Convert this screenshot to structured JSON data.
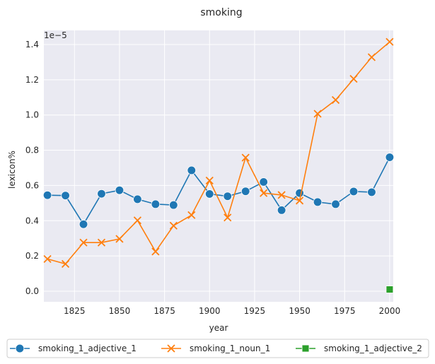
{
  "chart_data": {
    "type": "line",
    "title": "smoking",
    "xlabel": "year",
    "ylabel": "lexicon%",
    "y_offset_label": "1e−5",
    "xlim": [
      1808,
      2002
    ],
    "ylim": [
      -0.06,
      1.48
    ],
    "x_ticks": [
      1825,
      1850,
      1875,
      1900,
      1925,
      1950,
      1975,
      2000
    ],
    "y_ticks": [
      0.0,
      0.2,
      0.4,
      0.6,
      0.8,
      1.0,
      1.2,
      1.4
    ],
    "y_tick_labels": [
      "0.0",
      "0.2",
      "0.4",
      "0.6",
      "0.8",
      "1.0",
      "1.2",
      "1.4"
    ],
    "grid": true,
    "legend_position": "bottom",
    "series": [
      {
        "name": "smoking_1_adjective_1",
        "color": "#1f77b4",
        "marker": "circle",
        "x": [
          1810,
          1820,
          1830,
          1840,
          1850,
          1860,
          1870,
          1880,
          1890,
          1900,
          1910,
          1920,
          1930,
          1940,
          1950,
          1960,
          1970,
          1980,
          1990,
          2000
        ],
        "y": [
          0.545,
          0.543,
          0.38,
          0.553,
          0.573,
          0.522,
          0.494,
          0.489,
          0.686,
          0.552,
          0.539,
          0.567,
          0.62,
          0.46,
          0.557,
          0.506,
          0.494,
          0.566,
          0.562,
          0.76
        ]
      },
      {
        "name": "smoking_1_noun_1",
        "color": "#ff7f0e",
        "marker": "x",
        "x": [
          1810,
          1820,
          1830,
          1840,
          1850,
          1860,
          1870,
          1880,
          1890,
          1900,
          1910,
          1920,
          1930,
          1940,
          1950,
          1960,
          1970,
          1980,
          1990,
          2000
        ],
        "y": [
          0.183,
          0.155,
          0.276,
          0.276,
          0.297,
          0.402,
          0.225,
          0.372,
          0.432,
          0.628,
          0.418,
          0.758,
          0.557,
          0.546,
          0.514,
          1.007,
          1.085,
          1.205,
          1.328,
          1.415
        ]
      },
      {
        "name": "smoking_1_adjective_2",
        "color": "#2ca02c",
        "marker": "square",
        "x": [
          2000
        ],
        "y": [
          0.01
        ]
      }
    ]
  }
}
